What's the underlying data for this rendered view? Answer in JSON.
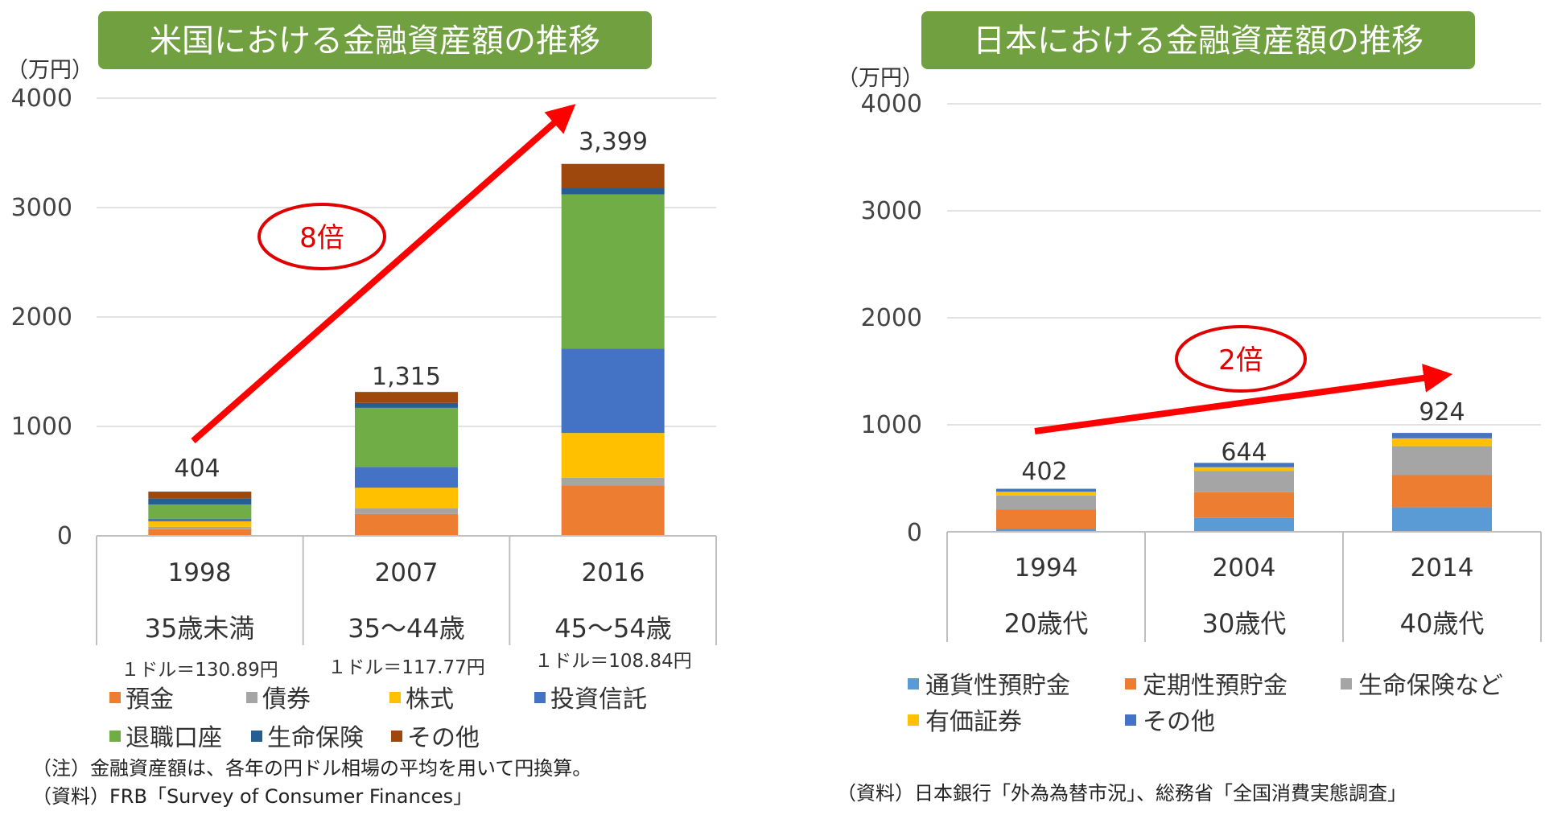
{
  "chart_data": [
    {
      "type": "bar",
      "stacked": true,
      "title": "米国における金融資産額の推移",
      "unit_label": "（万円）",
      "ylim": [
        0,
        4000
      ],
      "yticks": [
        "0",
        "1000",
        "2000",
        "3000",
        "4000"
      ],
      "grid": true,
      "categories": [
        "1998",
        "2007",
        "2016"
      ],
      "category_sublabels": [
        "35歳未満",
        "35～44歳",
        "45～54歳"
      ],
      "exchange_notes": [
        "１ドル＝130.89円",
        "１ドル＝117.77円",
        "１ドル＝108.84円"
      ],
      "totals": [
        "404",
        "1,315",
        "3,399"
      ],
      "series": [
        {
          "name": "預金",
          "color": "#ED7D31",
          "values": [
            60,
            200,
            460
          ]
        },
        {
          "name": "債券",
          "color": "#A5A5A5",
          "values": [
            22,
            50,
            70
          ]
        },
        {
          "name": "株式",
          "color": "#FFC000",
          "values": [
            50,
            190,
            410
          ]
        },
        {
          "name": "投資信託",
          "color": "#4472C4",
          "values": [
            25,
            190,
            770
          ]
        },
        {
          "name": "退職口座",
          "color": "#70AD47",
          "values": [
            130,
            540,
            1410
          ]
        },
        {
          "name": "生命保険",
          "color": "#255E91",
          "values": [
            57,
            45,
            60
          ]
        },
        {
          "name": "その他",
          "color": "#9E480E",
          "values": [
            60,
            100,
            219
          ]
        }
      ],
      "annotation": "8倍",
      "legend_position": "bottom",
      "footnote_1": "（注）金融資産額は、各年の円ドル相場の平均を用いて円換算。",
      "footnote_2": "（資料）FRB「Survey of Consumer Finances」"
    },
    {
      "type": "bar",
      "stacked": true,
      "title": "日本における金融資産額の推移",
      "unit_label": "（万円）",
      "ylim": [
        0,
        4000
      ],
      "yticks": [
        "0",
        "1000",
        "2000",
        "3000",
        "4000"
      ],
      "grid": true,
      "categories": [
        "1994",
        "2004",
        "2014"
      ],
      "category_sublabels": [
        "20歳代",
        "30歳代",
        "40歳代"
      ],
      "totals": [
        "402",
        "644",
        "924"
      ],
      "series": [
        {
          "name": "通貨性預貯金",
          "color": "#5B9BD5",
          "values": [
            30,
            130,
            230
          ]
        },
        {
          "name": "定期性預貯金",
          "color": "#ED7D31",
          "values": [
            180,
            240,
            300
          ]
        },
        {
          "name": "生命保険など",
          "color": "#A5A5A5",
          "values": [
            130,
            200,
            270
          ]
        },
        {
          "name": "有価証券",
          "color": "#FFC000",
          "values": [
            35,
            34,
            74
          ]
        },
        {
          "name": "その他",
          "color": "#4472C4",
          "values": [
            27,
            40,
            50
          ]
        }
      ],
      "annotation": "2倍",
      "legend_position": "bottom",
      "footnote_1": "（資料）日本銀行「外為為替市況」、総務省「全国消費実態調査」"
    }
  ]
}
